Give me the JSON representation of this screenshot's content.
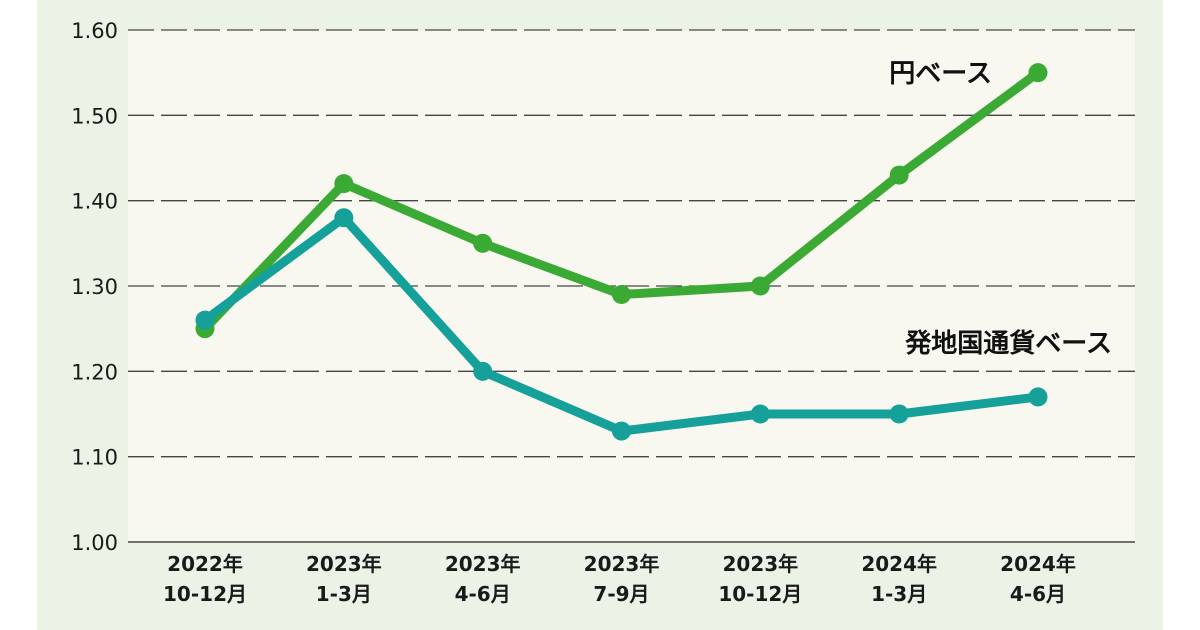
{
  "chart_data": {
    "type": "line",
    "categories": [
      [
        "2022年",
        "10-12月"
      ],
      [
        "2023年",
        "1-3月"
      ],
      [
        "2023年",
        "4-6月"
      ],
      [
        "2023年",
        "7-9月"
      ],
      [
        "2023年",
        "10-12月"
      ],
      [
        "2024年",
        "1-3月"
      ],
      [
        "2024年",
        "4-6月"
      ]
    ],
    "ylim": [
      1.0,
      1.6
    ],
    "yticks": [
      "1.00",
      "1.10",
      "1.20",
      "1.30",
      "1.40",
      "1.50",
      "1.60"
    ],
    "grid": true,
    "series": [
      {
        "name": "円ベース",
        "color": "#3aaa35",
        "values": [
          1.25,
          1.42,
          1.35,
          1.29,
          1.3,
          1.43,
          1.55
        ]
      },
      {
        "name": "発地国通貨ベース",
        "color": "#16a09a",
        "values": [
          1.26,
          1.38,
          1.2,
          1.13,
          1.15,
          1.15,
          1.17
        ]
      }
    ]
  },
  "colors": {
    "panel_background": "#eaf3e5",
    "plot_background": "#f9f8f0",
    "grid": "#444444"
  }
}
